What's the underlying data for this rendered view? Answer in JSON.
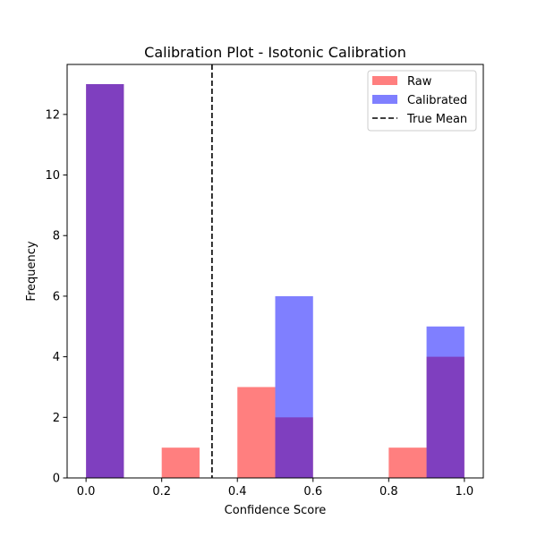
{
  "chart_data": {
    "type": "bar",
    "title": "Calibration Plot - Isotonic Calibration",
    "xlabel": "Confidence Score",
    "ylabel": "Frequency",
    "xlim": [
      -0.05,
      1.05
    ],
    "ylim": [
      0,
      13.65
    ],
    "xticks": [
      0.0,
      0.2,
      0.4,
      0.6,
      0.8,
      1.0
    ],
    "xtick_labels": [
      "0.0",
      "0.2",
      "0.4",
      "0.6",
      "0.8",
      "1.0"
    ],
    "yticks": [
      0,
      2,
      4,
      6,
      8,
      10,
      12
    ],
    "ytick_labels": [
      "0",
      "2",
      "4",
      "6",
      "8",
      "10",
      "12"
    ],
    "bin_edges": [
      0.0,
      0.1,
      0.2,
      0.3,
      0.4,
      0.5,
      0.6,
      0.7,
      0.8,
      0.9,
      1.0
    ],
    "series": [
      {
        "name": "Raw",
        "color": "#ff0000",
        "opacity": 0.5,
        "values": [
          13,
          0,
          1,
          0,
          3,
          2,
          0,
          0,
          1,
          4
        ]
      },
      {
        "name": "Calibrated",
        "color": "#0000ff",
        "opacity": 0.5,
        "values": [
          13,
          0,
          0,
          0,
          0,
          6,
          0,
          0,
          0,
          5
        ]
      }
    ],
    "reference_line": {
      "name": "True Mean",
      "x": 0.333,
      "color": "#000000",
      "style": "dashed"
    },
    "legend": {
      "position": "top-right",
      "entries": [
        "Raw",
        "Calibrated",
        "True Mean"
      ]
    },
    "grid": false
  }
}
